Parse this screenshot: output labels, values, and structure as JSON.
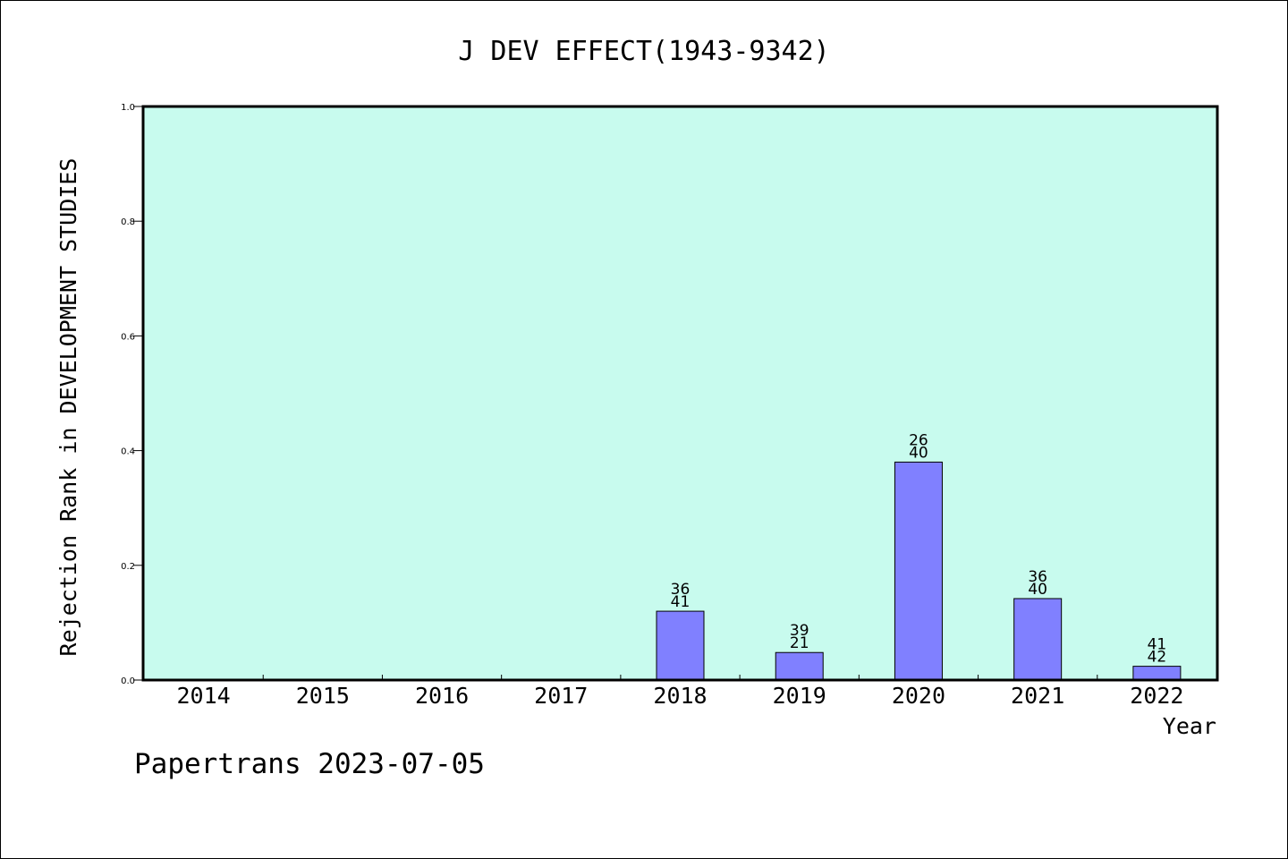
{
  "chart_data": {
    "type": "bar",
    "title": "J DEV EFFECT(1943-9342)",
    "xlabel": "Year",
    "ylabel": "Rejection Rank in DEVELOPMENT STUDIES",
    "ylim": [
      0,
      1.0
    ],
    "yticks": [
      "0.0",
      "0.2",
      "0.4",
      "0.6",
      "0.8",
      "1.0"
    ],
    "categories": [
      "2014",
      "2015",
      "2016",
      "2017",
      "2018",
      "2019",
      "2020",
      "2021",
      "2022"
    ],
    "values": [
      null,
      null,
      null,
      null,
      0.12,
      0.048,
      0.38,
      0.142,
      0.024
    ],
    "labels_top": [
      null,
      null,
      null,
      null,
      "36",
      "39",
      "26",
      "36",
      "41"
    ],
    "labels_bottom": [
      null,
      null,
      null,
      null,
      "41",
      "21",
      "40",
      "40",
      "42"
    ],
    "grid": false,
    "colors": {
      "plot_bg": "#c8fbee",
      "bar": "#8080ff",
      "bar_edge": "#000000"
    }
  },
  "footer": "Papertrans 2023-07-05"
}
